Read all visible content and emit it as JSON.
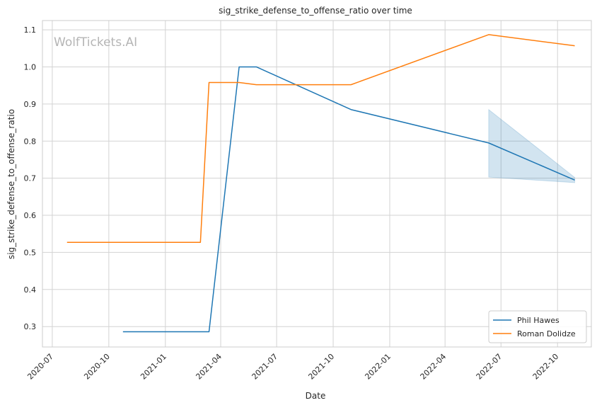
{
  "chart_data": {
    "type": "line",
    "title": "sig_strike_defense_to_offense_ratio over time",
    "xlabel": "Date",
    "ylabel": "sig_strike_defense_to_offense_ratio",
    "watermark": "WolfTickets.AI",
    "xlim": [
      "2020-06-15",
      "2022-11-25"
    ],
    "ylim": [
      0.245,
      1.125
    ],
    "x_ticks": [
      "2020-07",
      "2020-10",
      "2021-01",
      "2021-04",
      "2021-07",
      "2021-10",
      "2022-01",
      "2022-04",
      "2022-07",
      "2022-10"
    ],
    "y_ticks": [
      "0.3",
      "0.4",
      "0.5",
      "0.6",
      "0.7",
      "0.8",
      "0.9",
      "1.0",
      "1.1"
    ],
    "grid": true,
    "legend_position": "bottom-right",
    "series": [
      {
        "name": "Phil Hawes",
        "color": "#1f77b4",
        "points": [
          {
            "x": "2020-10-24",
            "y": 0.286
          },
          {
            "x": "2021-03-13",
            "y": 0.286
          },
          {
            "x": "2021-05-01",
            "y": 1.0
          },
          {
            "x": "2021-05-29",
            "y": 1.0
          },
          {
            "x": "2021-10-30",
            "y": 0.885
          },
          {
            "x": "2022-06-11",
            "y": 0.795
          },
          {
            "x": "2022-10-29",
            "y": 0.695
          }
        ],
        "band": [
          {
            "x": "2022-06-11",
            "low": 0.703,
            "high": 0.885
          },
          {
            "x": "2022-10-29",
            "low": 0.688,
            "high": 0.702
          }
        ]
      },
      {
        "name": "Roman Dolidze",
        "color": "#ff7f0e",
        "points": [
          {
            "x": "2020-07-25",
            "y": 0.527
          },
          {
            "x": "2021-02-27",
            "y": 0.527
          },
          {
            "x": "2021-03-13",
            "y": 0.958
          },
          {
            "x": "2021-05-01",
            "y": 0.958
          },
          {
            "x": "2021-05-29",
            "y": 0.952
          },
          {
            "x": "2021-10-30",
            "y": 0.952
          },
          {
            "x": "2022-06-11",
            "y": 1.087
          },
          {
            "x": "2022-10-29",
            "y": 1.057
          }
        ]
      }
    ]
  }
}
